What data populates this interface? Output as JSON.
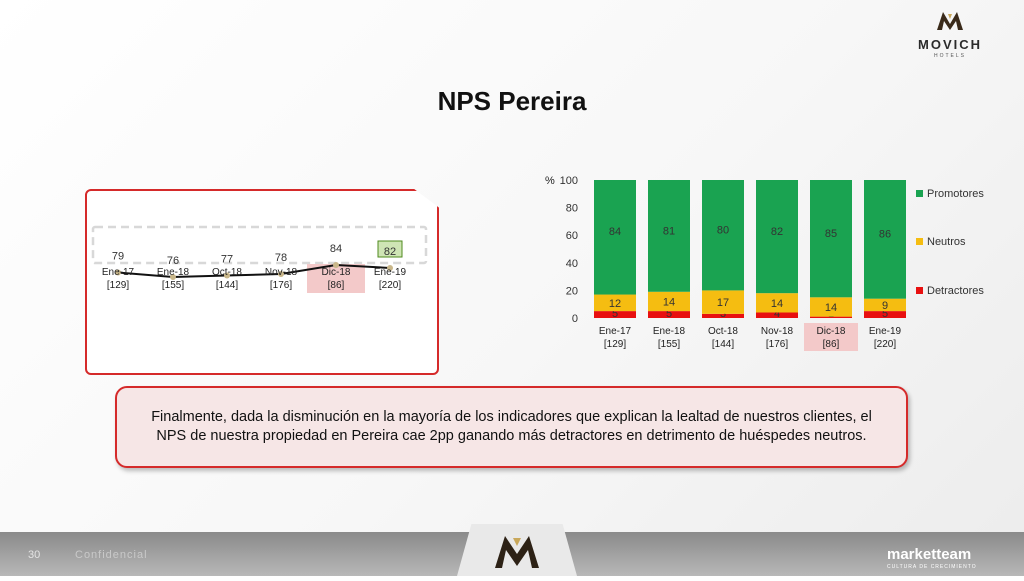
{
  "logo": {
    "word": "MOVICH",
    "sub": "HOTELS"
  },
  "title": "NPS Pereira",
  "chart_data": [
    {
      "type": "line",
      "categories": [
        "Ene-17",
        "Ene-18",
        "Oct-18",
        "Nov-18",
        "Dic-18",
        "Ene-19"
      ],
      "category_sub": [
        "[129]",
        "[155]",
        "[144]",
        "[176]",
        "[86]",
        "[220]"
      ],
      "highlighted_category": "Dic-18",
      "highlighted_value": 82,
      "series": [
        {
          "values": [
            79,
            76,
            77,
            78,
            84,
            82
          ]
        }
      ],
      "ylim": [
        60,
        100
      ],
      "grid": false,
      "colors": {
        "line": "#111111",
        "marker": "#c9b78a",
        "highlight": "#f3c9c9",
        "last_value_box": "#cfe5b5"
      }
    },
    {
      "type": "bar",
      "stacked": true,
      "categories": [
        "Ene-17",
        "Ene-18",
        "Oct-18",
        "Nov-18",
        "Dic-18",
        "Ene-19"
      ],
      "category_sub": [
        "[129]",
        "[155]",
        "[144]",
        "[176]",
        "[86]",
        "[220]"
      ],
      "highlighted_category": "Dic-18",
      "ylabel": "%",
      "ylim": [
        0,
        100
      ],
      "yticks": [
        0,
        20,
        40,
        60,
        80,
        100
      ],
      "grid": false,
      "legend_position": "right",
      "series": [
        {
          "name": "Detractores",
          "color": "#e81010",
          "values": [
            5,
            5,
            3,
            4,
            1,
            5
          ]
        },
        {
          "name": "Neutros",
          "color": "#f5bd11",
          "values": [
            12,
            14,
            17,
            14,
            14,
            9
          ]
        },
        {
          "name": "Promotores",
          "color": "#1aa351",
          "values": [
            84,
            81,
            80,
            82,
            85,
            86
          ]
        }
      ],
      "legend_order": [
        "Promotores",
        "Neutros",
        "Detractores"
      ],
      "colors": {
        "highlight": "#f3c9c9"
      }
    }
  ],
  "message": "Finalmente, dada la disminución en la mayoría de los indicadores que explican la lealtad de nuestros clientes, el NPS de nuestra propiedad en Pereira cae 2pp ganando más detractores en detrimento de huéspedes neutros.",
  "footer": {
    "page_number": "30",
    "confidential": "Confidencial",
    "brand": "marketteam",
    "brand_sub": "CULTURA DE CRECIMIENTO"
  }
}
